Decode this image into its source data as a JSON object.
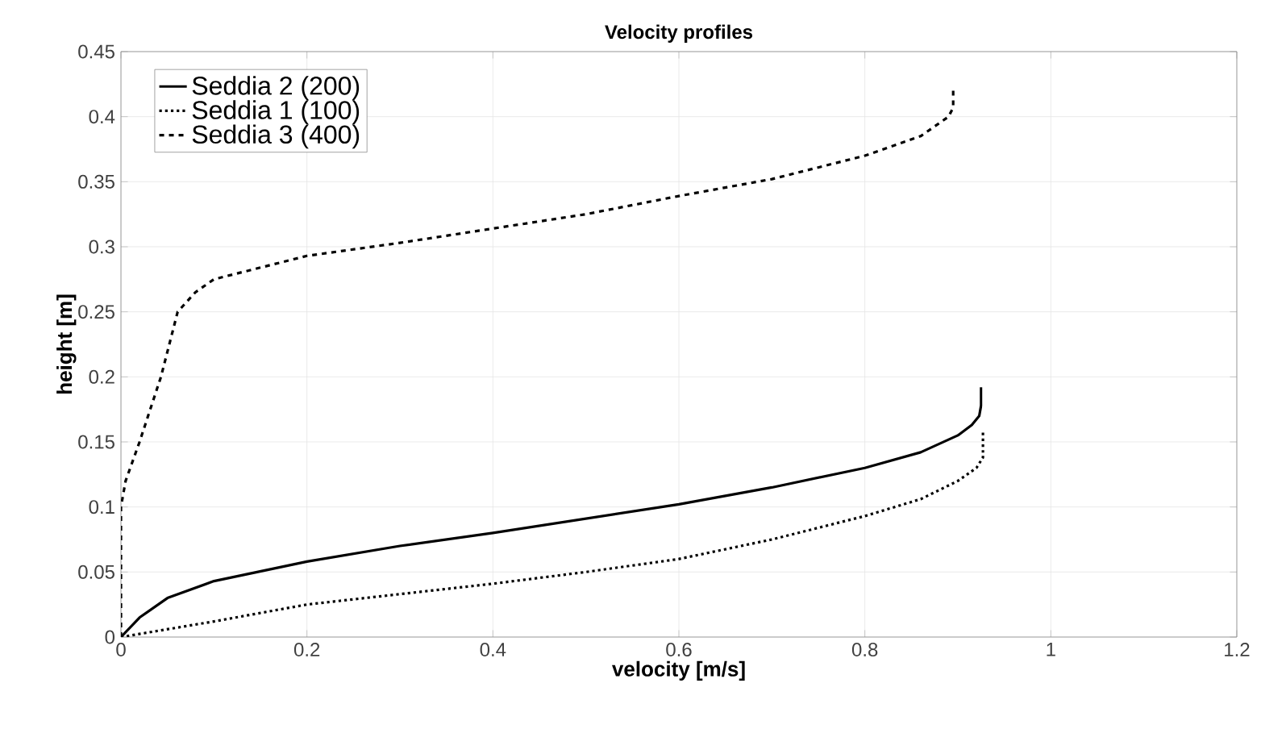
{
  "chart_data": {
    "type": "line",
    "title": "Velocity profiles",
    "xlabel": "velocity [m/s]",
    "ylabel": "height [m]",
    "xlim": [
      0,
      1.2
    ],
    "ylim": [
      0,
      0.45
    ],
    "xticks": [
      0,
      0.2,
      0.4,
      0.6,
      0.8,
      1,
      1.2
    ],
    "yticks": [
      0,
      0.05,
      0.1,
      0.15,
      0.2,
      0.25,
      0.3,
      0.35,
      0.4,
      0.45
    ],
    "grid": true,
    "legend": "top left",
    "series": [
      {
        "name": "Seddia 2 (200)",
        "color": "#000000",
        "line_style": "solid",
        "x": [
          0,
          0.02,
          0.05,
          0.1,
          0.2,
          0.3,
          0.4,
          0.5,
          0.6,
          0.7,
          0.8,
          0.86,
          0.9,
          0.915,
          0.923,
          0.925,
          0.925
        ],
        "values": [
          0,
          0.015,
          0.03,
          0.043,
          0.058,
          0.07,
          0.08,
          0.091,
          0.102,
          0.115,
          0.13,
          0.142,
          0.155,
          0.163,
          0.17,
          0.178,
          0.192
        ]
      },
      {
        "name": "Seddia 1 (100)",
        "color": "#000000",
        "line_style": "dotted",
        "x": [
          0,
          0.1,
          0.2,
          0.3,
          0.4,
          0.5,
          0.6,
          0.7,
          0.8,
          0.86,
          0.9,
          0.92,
          0.927,
          0.927
        ],
        "values": [
          0,
          0.012,
          0.025,
          0.033,
          0.041,
          0.05,
          0.06,
          0.075,
          0.093,
          0.106,
          0.12,
          0.13,
          0.138,
          0.159
        ]
      },
      {
        "name": "Seddia 3 (400)",
        "color": "#000000",
        "line_style": "dashed",
        "x": [
          0,
          0,
          0.005,
          0.02,
          0.043,
          0.061,
          0.08,
          0.1,
          0.2,
          0.3,
          0.4,
          0.5,
          0.6,
          0.7,
          0.8,
          0.86,
          0.89,
          0.895,
          0.895
        ],
        "values": [
          0,
          0.1,
          0.12,
          0.15,
          0.2,
          0.25,
          0.265,
          0.275,
          0.293,
          0.303,
          0.314,
          0.325,
          0.339,
          0.352,
          0.37,
          0.385,
          0.4,
          0.407,
          0.42
        ]
      }
    ]
  }
}
